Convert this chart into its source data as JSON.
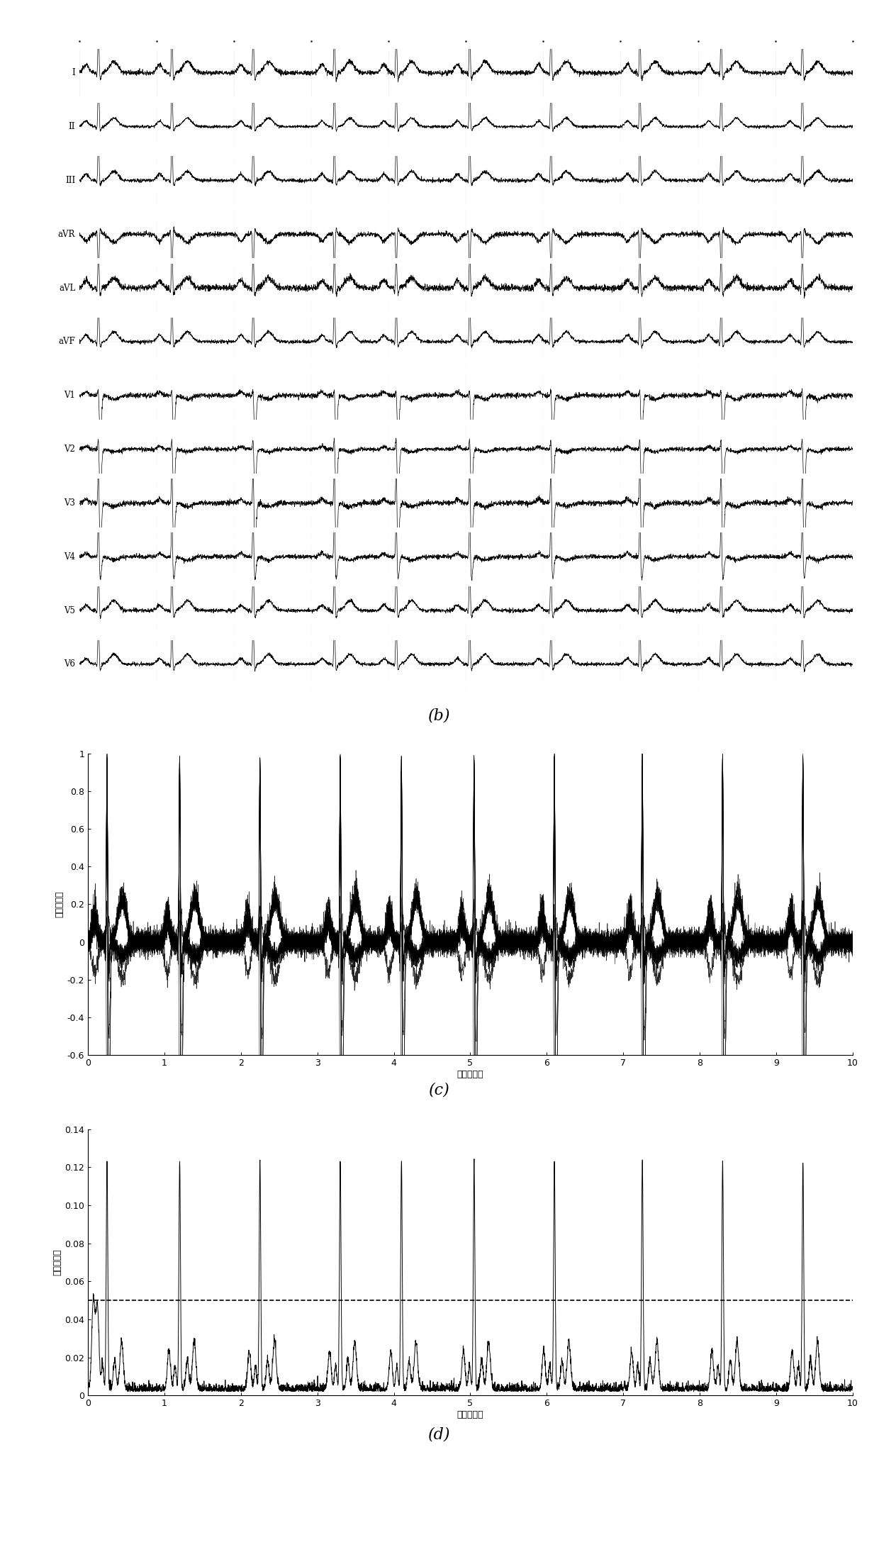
{
  "lead_labels": [
    "I",
    "II",
    "III",
    "aVR",
    "aVL",
    "aVF",
    "V1",
    "V2",
    "V3",
    "V4",
    "V5",
    "V6"
  ],
  "panel_b_label": "(b)",
  "panel_c_label": "(c)",
  "panel_d_label": "(d)",
  "panel_c_ylabel": "归一化幅度",
  "panel_d_ylabel": "归一化幅度",
  "xlabel": "时间（秒）",
  "panel_c_ylim": [
    -0.6,
    1.0
  ],
  "panel_c_yticks": [
    -0.6,
    -0.4,
    -0.2,
    0.0,
    0.2,
    0.4,
    0.6,
    0.8,
    1.0
  ],
  "panel_d_ylim": [
    0,
    0.14
  ],
  "panel_d_yticks": [
    0.0,
    0.02,
    0.04,
    0.06,
    0.08,
    0.1,
    0.12,
    0.14
  ],
  "xlim": [
    0,
    10
  ],
  "xticks": [
    0,
    1,
    2,
    3,
    4,
    5,
    6,
    7,
    8,
    9,
    10
  ],
  "threshold_d": 0.05,
  "background_color": "#ffffff",
  "qrs_times": [
    0.25,
    1.2,
    2.25,
    3.3,
    4.1,
    5.05,
    6.1,
    7.25,
    8.3,
    9.35
  ]
}
